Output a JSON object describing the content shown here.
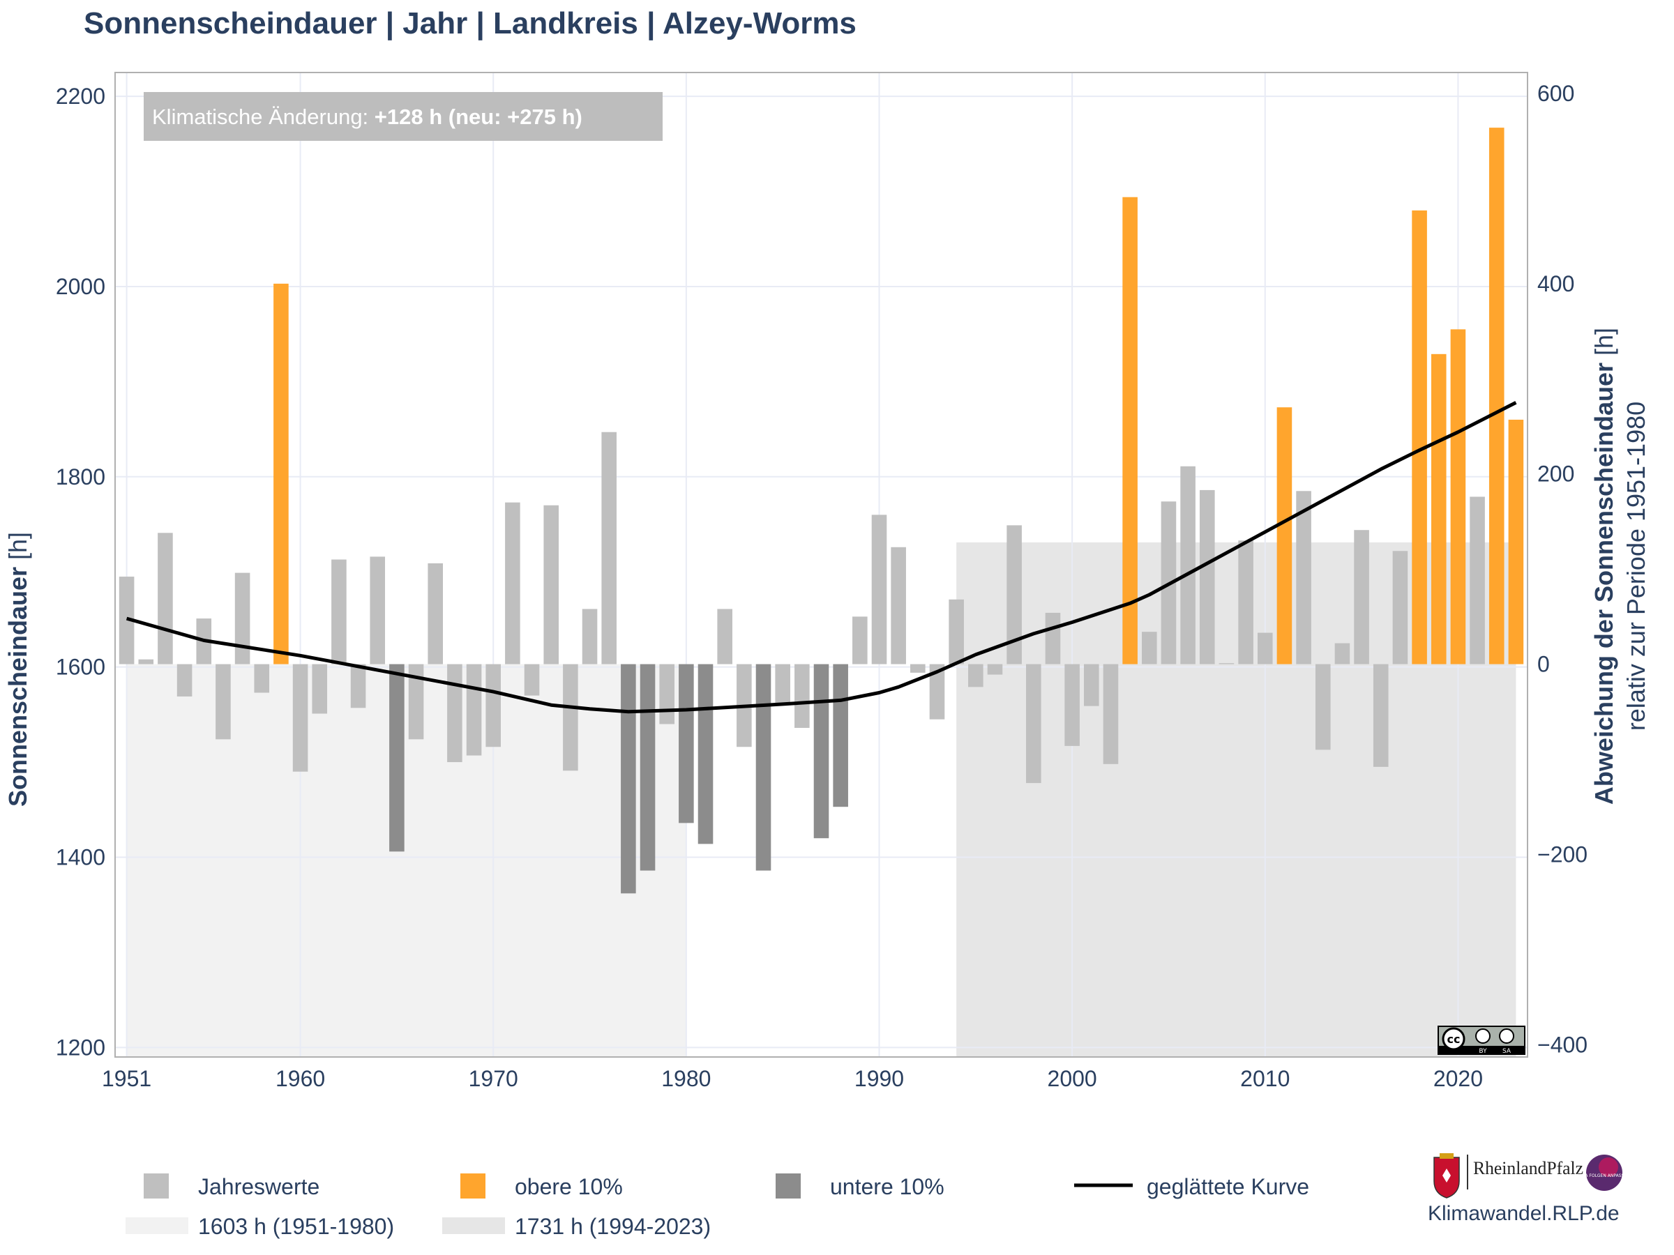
{
  "chart_data": {
    "type": "bar",
    "title": "Sonnenscheindauer | Jahr | Landkreis | Alzey-Worms",
    "ylabel": "Sonnenscheindauer [h]",
    "y2label": "Abweichung der Sonnenscheindauer [h]",
    "y2sublabel": "relativ zur Periode 1951-1980",
    "annotation_prefix": "Klimatische Änderung: ",
    "annotation_value": "+128 h (neu: +275 h)",
    "ylim": [
      1190,
      2225
    ],
    "y2lim": [
      -413,
      622
    ],
    "xlim": [
      1950.4,
      2023.6
    ],
    "yticks": [
      1200,
      1400,
      1600,
      1800,
      2000,
      2200
    ],
    "y2ticks": [
      -400,
      -200,
      0,
      200,
      400,
      600
    ],
    "y2ticklabels": [
      "−400",
      "−200",
      "0",
      "200",
      "400",
      "600"
    ],
    "xticks": [
      1951,
      1960,
      1970,
      1980,
      1990,
      2000,
      2010,
      2020
    ],
    "baseline": 1603,
    "grid": true,
    "legend_placement": "bottom",
    "colors": {
      "normal": "#bfbfbf",
      "upper": "#ffa52d",
      "lower": "#8c8c8c",
      "curve": "#000000",
      "ref1": "#f2f2f2",
      "ref2": "#e6e6e6"
    },
    "series": [
      {
        "name": "Jahreswerte",
        "color": "#bfbfbf"
      },
      {
        "name": "obere 10%",
        "color": "#ffa52d"
      },
      {
        "name": "untere 10%",
        "color": "#8c8c8c"
      },
      {
        "name": "geglättete Kurve",
        "color": "#000000"
      }
    ],
    "reference_periods": [
      {
        "label": "1603 h (1951-1980)",
        "value": 1603,
        "from": 1951,
        "to": 1980,
        "color": "#f2f2f2"
      },
      {
        "label": "1731 h (1994-2023)",
        "value": 1731,
        "from": 1994,
        "to": 2023,
        "color": "#e6e6e6"
      }
    ],
    "bars": [
      {
        "year": 1951,
        "value": 1695,
        "cls": "normal"
      },
      {
        "year": 1952,
        "value": 1608,
        "cls": "normal"
      },
      {
        "year": 1953,
        "value": 1741,
        "cls": "normal"
      },
      {
        "year": 1954,
        "value": 1569,
        "cls": "normal"
      },
      {
        "year": 1955,
        "value": 1651,
        "cls": "normal"
      },
      {
        "year": 1956,
        "value": 1524,
        "cls": "normal"
      },
      {
        "year": 1957,
        "value": 1699,
        "cls": "normal"
      },
      {
        "year": 1958,
        "value": 1573,
        "cls": "normal"
      },
      {
        "year": 1959,
        "value": 2003,
        "cls": "upper"
      },
      {
        "year": 1960,
        "value": 1490,
        "cls": "normal"
      },
      {
        "year": 1961,
        "value": 1551,
        "cls": "normal"
      },
      {
        "year": 1962,
        "value": 1713,
        "cls": "normal"
      },
      {
        "year": 1963,
        "value": 1557,
        "cls": "normal"
      },
      {
        "year": 1964,
        "value": 1716,
        "cls": "normal"
      },
      {
        "year": 1965,
        "value": 1406,
        "cls": "lower"
      },
      {
        "year": 1966,
        "value": 1524,
        "cls": "normal"
      },
      {
        "year": 1967,
        "value": 1709,
        "cls": "normal"
      },
      {
        "year": 1968,
        "value": 1500,
        "cls": "normal"
      },
      {
        "year": 1969,
        "value": 1507,
        "cls": "normal"
      },
      {
        "year": 1970,
        "value": 1516,
        "cls": "normal"
      },
      {
        "year": 1971,
        "value": 1773,
        "cls": "normal"
      },
      {
        "year": 1972,
        "value": 1570,
        "cls": "normal"
      },
      {
        "year": 1973,
        "value": 1770,
        "cls": "normal"
      },
      {
        "year": 1974,
        "value": 1491,
        "cls": "normal"
      },
      {
        "year": 1975,
        "value": 1661,
        "cls": "normal"
      },
      {
        "year": 1976,
        "value": 1847,
        "cls": "normal"
      },
      {
        "year": 1977,
        "value": 1362,
        "cls": "lower"
      },
      {
        "year": 1978,
        "value": 1386,
        "cls": "lower"
      },
      {
        "year": 1979,
        "value": 1540,
        "cls": "normal"
      },
      {
        "year": 1980,
        "value": 1436,
        "cls": "lower"
      },
      {
        "year": 1981,
        "value": 1414,
        "cls": "lower"
      },
      {
        "year": 1982,
        "value": 1661,
        "cls": "normal"
      },
      {
        "year": 1983,
        "value": 1516,
        "cls": "normal"
      },
      {
        "year": 1984,
        "value": 1386,
        "cls": "lower"
      },
      {
        "year": 1985,
        "value": 1562,
        "cls": "normal"
      },
      {
        "year": 1986,
        "value": 1536,
        "cls": "normal"
      },
      {
        "year": 1987,
        "value": 1420,
        "cls": "lower"
      },
      {
        "year": 1988,
        "value": 1453,
        "cls": "lower"
      },
      {
        "year": 1989,
        "value": 1653,
        "cls": "normal"
      },
      {
        "year": 1990,
        "value": 1760,
        "cls": "normal"
      },
      {
        "year": 1991,
        "value": 1726,
        "cls": "normal"
      },
      {
        "year": 1992,
        "value": 1594,
        "cls": "normal"
      },
      {
        "year": 1993,
        "value": 1545,
        "cls": "normal"
      },
      {
        "year": 1994,
        "value": 1671,
        "cls": "normal"
      },
      {
        "year": 1995,
        "value": 1579,
        "cls": "normal"
      },
      {
        "year": 1996,
        "value": 1592,
        "cls": "normal"
      },
      {
        "year": 1997,
        "value": 1749,
        "cls": "normal"
      },
      {
        "year": 1998,
        "value": 1478,
        "cls": "normal"
      },
      {
        "year": 1999,
        "value": 1657,
        "cls": "normal"
      },
      {
        "year": 2000,
        "value": 1517,
        "cls": "normal"
      },
      {
        "year": 2001,
        "value": 1559,
        "cls": "normal"
      },
      {
        "year": 2002,
        "value": 1498,
        "cls": "normal"
      },
      {
        "year": 2003,
        "value": 2094,
        "cls": "upper"
      },
      {
        "year": 2004,
        "value": 1637,
        "cls": "normal"
      },
      {
        "year": 2005,
        "value": 1774,
        "cls": "normal"
      },
      {
        "year": 2006,
        "value": 1811,
        "cls": "normal"
      },
      {
        "year": 2007,
        "value": 1786,
        "cls": "normal"
      },
      {
        "year": 2008,
        "value": 1604,
        "cls": "normal"
      },
      {
        "year": 2009,
        "value": 1733,
        "cls": "normal"
      },
      {
        "year": 2010,
        "value": 1636,
        "cls": "normal"
      },
      {
        "year": 2011,
        "value": 1873,
        "cls": "upper"
      },
      {
        "year": 2012,
        "value": 1785,
        "cls": "normal"
      },
      {
        "year": 2013,
        "value": 1513,
        "cls": "normal"
      },
      {
        "year": 2014,
        "value": 1625,
        "cls": "normal"
      },
      {
        "year": 2015,
        "value": 1744,
        "cls": "normal"
      },
      {
        "year": 2016,
        "value": 1495,
        "cls": "normal"
      },
      {
        "year": 2017,
        "value": 1722,
        "cls": "normal"
      },
      {
        "year": 2018,
        "value": 2080,
        "cls": "upper"
      },
      {
        "year": 2019,
        "value": 1929,
        "cls": "upper"
      },
      {
        "year": 2020,
        "value": 1955,
        "cls": "upper"
      },
      {
        "year": 2021,
        "value": 1779,
        "cls": "normal"
      },
      {
        "year": 2022,
        "value": 2167,
        "cls": "upper"
      },
      {
        "year": 2023,
        "value": 1860,
        "cls": "upper"
      }
    ],
    "smooth_curve": [
      {
        "x": 1951,
        "y": 1651
      },
      {
        "x": 1955,
        "y": 1628
      },
      {
        "x": 1960,
        "y": 1612
      },
      {
        "x": 1965,
        "y": 1593
      },
      {
        "x": 1970,
        "y": 1574
      },
      {
        "x": 1973,
        "y": 1560
      },
      {
        "x": 1975,
        "y": 1556
      },
      {
        "x": 1977,
        "y": 1553
      },
      {
        "x": 1980,
        "y": 1555
      },
      {
        "x": 1985,
        "y": 1561
      },
      {
        "x": 1988,
        "y": 1565
      },
      {
        "x": 1990,
        "y": 1573
      },
      {
        "x": 1991,
        "y": 1579
      },
      {
        "x": 1993,
        "y": 1595
      },
      {
        "x": 1995,
        "y": 1613
      },
      {
        "x": 1998,
        "y": 1635
      },
      {
        "x": 2000,
        "y": 1647
      },
      {
        "x": 2003,
        "y": 1667
      },
      {
        "x": 2004,
        "y": 1676
      },
      {
        "x": 2006,
        "y": 1698
      },
      {
        "x": 2010,
        "y": 1742
      },
      {
        "x": 2012,
        "y": 1764
      },
      {
        "x": 2014,
        "y": 1786
      },
      {
        "x": 2016,
        "y": 1808
      },
      {
        "x": 2018,
        "y": 1828
      },
      {
        "x": 2020,
        "y": 1847
      },
      {
        "x": 2023,
        "y": 1878
      }
    ]
  },
  "branding": {
    "state_logo_text": "RheinlandPfalz",
    "badge_text": "KLIMA FOLGEN ANPASSUNG",
    "website": "Klimawandel.RLP.de",
    "license_cc": "cc",
    "license_by": "BY",
    "license_sa": "SA"
  }
}
